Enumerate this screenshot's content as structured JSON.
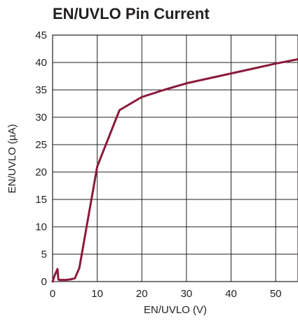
{
  "chart_data": {
    "type": "line",
    "title": "EN/UVLO Pin Current",
    "xlabel": "EN/UVLO (V)",
    "ylabel": "EN/UVLO (µA)",
    "xlim": [
      0,
      55
    ],
    "ylim": [
      0,
      45
    ],
    "x_ticks": [
      "0",
      "10",
      "20",
      "30",
      "40",
      "50"
    ],
    "y_ticks": [
      "0",
      "5",
      "10",
      "15",
      "20",
      "25",
      "30",
      "35",
      "40",
      "45"
    ],
    "grid": true,
    "series": [
      {
        "color": "#8b1a3a",
        "x": [
          0,
          0.5,
          1.1,
          1.3,
          1.5,
          2,
          3,
          4,
          5,
          6,
          10,
          15,
          20,
          25,
          30,
          40,
          50,
          55
        ],
        "y": [
          0,
          1.2,
          2.3,
          0.4,
          0.3,
          0.3,
          0.3,
          0.4,
          0.6,
          2.5,
          21,
          31.3,
          33.7,
          35,
          36.2,
          38,
          39.8,
          40.6
        ]
      }
    ]
  }
}
